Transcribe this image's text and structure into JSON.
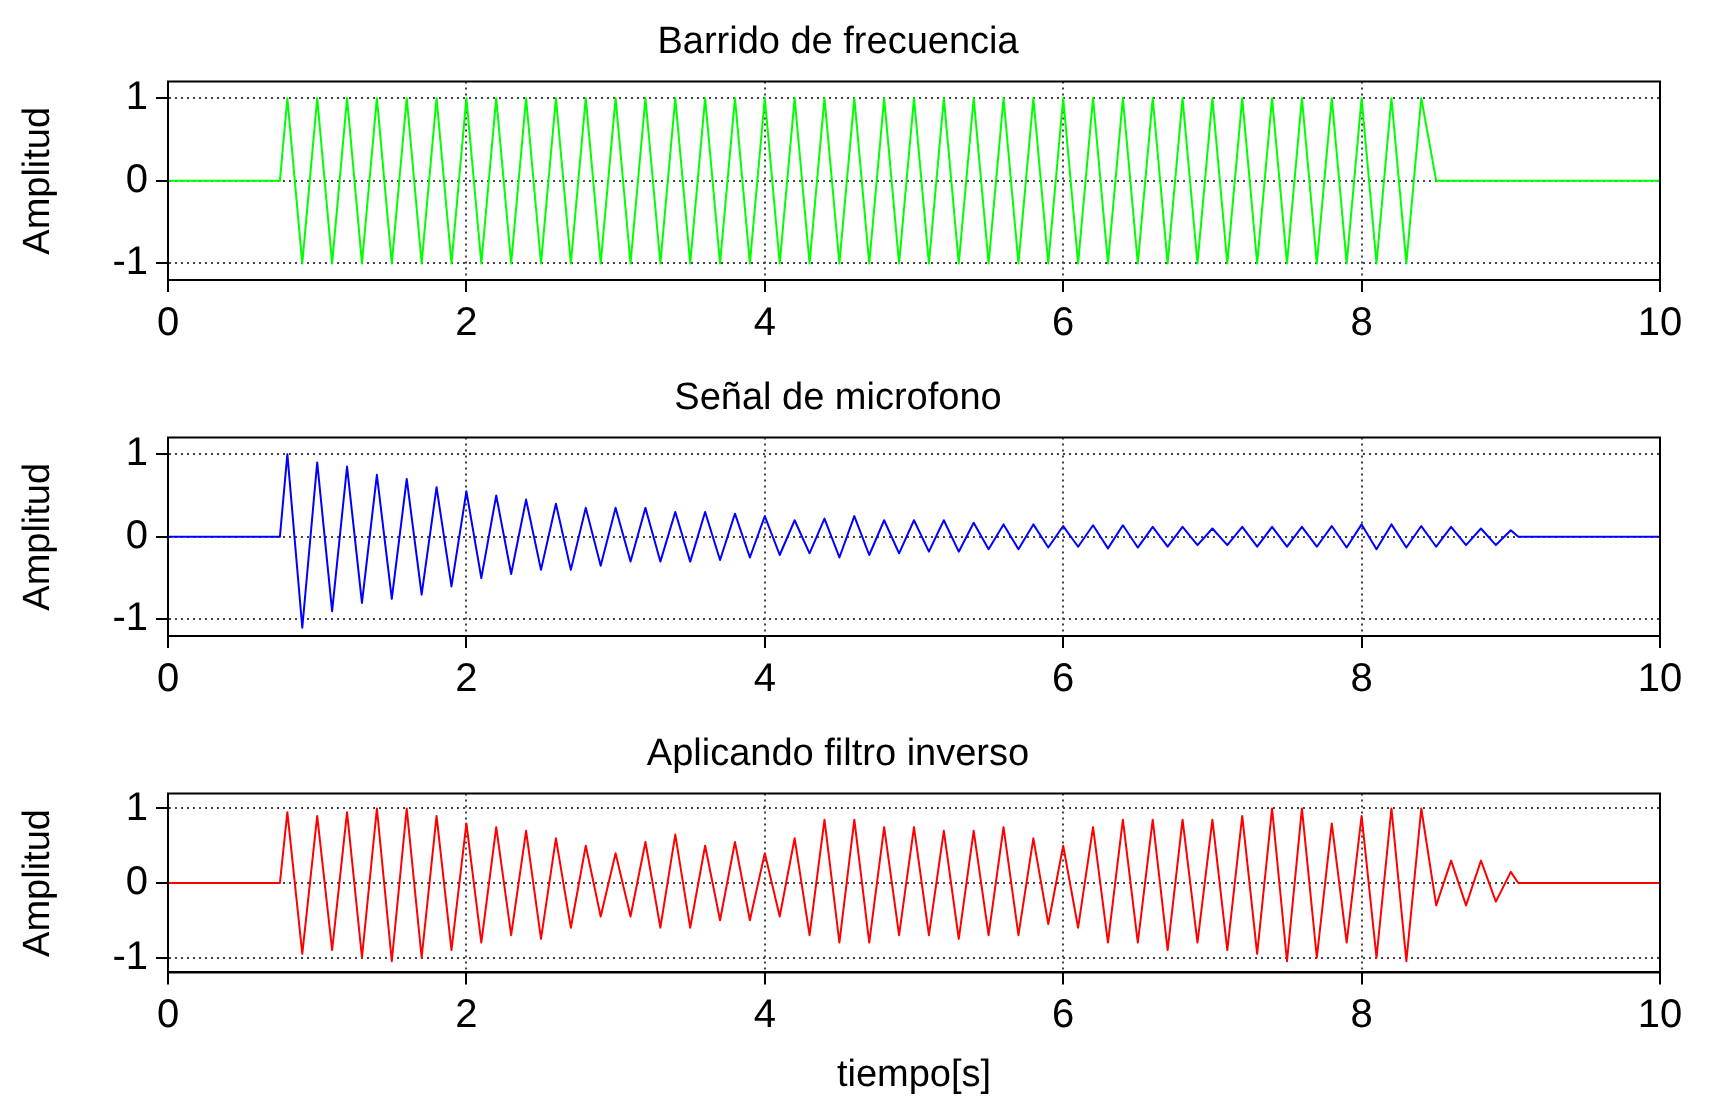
{
  "chart_data": [
    {
      "type": "line",
      "title": "Barrido de frecuencia",
      "ylabel": "Amplitud",
      "color": "#00ff00",
      "xlim": [
        0,
        10
      ],
      "ylim": [
        -1.2,
        1.2
      ],
      "xticks": [
        0,
        2,
        4,
        6,
        8,
        10
      ],
      "yticks": [
        -1,
        0,
        1
      ],
      "grid": true,
      "x": [
        0,
        0.75,
        0.8,
        0.9,
        1,
        1.1,
        1.2,
        1.3,
        1.4,
        1.5,
        1.6,
        1.7,
        1.8,
        1.9,
        2,
        2.1,
        2.2,
        2.3,
        2.4,
        2.5,
        2.6,
        2.7,
        2.8,
        2.9,
        3,
        3.1,
        3.2,
        3.3,
        3.4,
        3.5,
        3.6,
        3.7,
        3.8,
        3.9,
        4,
        4.1,
        4.2,
        4.3,
        4.4,
        4.5,
        4.6,
        4.7,
        4.8,
        4.9,
        5,
        5.1,
        5.2,
        5.3,
        5.4,
        5.5,
        5.6,
        5.7,
        5.8,
        5.9,
        6,
        6.1,
        6.2,
        6.3,
        6.4,
        6.5,
        6.6,
        6.7,
        6.8,
        6.9,
        7,
        7.1,
        7.2,
        7.3,
        7.4,
        7.5,
        7.6,
        7.7,
        7.8,
        7.9,
        8,
        8.1,
        8.2,
        8.3,
        8.4,
        8.5,
        10
      ],
      "values": [
        0,
        0,
        1,
        -1,
        1,
        -1,
        1,
        -1,
        1,
        -1,
        1,
        -1,
        1,
        -1,
        1,
        -1,
        1,
        -1,
        1,
        -1,
        1,
        -1,
        1,
        -1,
        1,
        -1,
        1,
        -1,
        1,
        -1,
        1,
        -1,
        1,
        -1,
        1,
        -1,
        1,
        -1,
        1,
        -1,
        1,
        -1,
        1,
        -1,
        1,
        -1,
        1,
        -1,
        1,
        -1,
        1,
        -1,
        1,
        -1,
        1,
        -1,
        1,
        -1,
        1,
        -1,
        1,
        -1,
        1,
        -1,
        1,
        -1,
        1,
        -1,
        1,
        -1,
        1,
        -1,
        1,
        -1,
        1,
        -1,
        1,
        -1,
        1,
        0,
        0
      ]
    },
    {
      "type": "line",
      "title": "Señal de microfono",
      "ylabel": "Amplitud",
      "color": "#0000ff",
      "xlim": [
        0,
        10
      ],
      "ylim": [
        -1.2,
        1.2
      ],
      "xticks": [
        0,
        2,
        4,
        6,
        8,
        10
      ],
      "yticks": [
        -1,
        0,
        1
      ],
      "grid": true,
      "x": [
        0,
        0.75,
        0.8,
        0.9,
        1,
        1.1,
        1.2,
        1.3,
        1.4,
        1.5,
        1.6,
        1.7,
        1.8,
        1.9,
        2,
        2.1,
        2.2,
        2.3,
        2.4,
        2.5,
        2.6,
        2.7,
        2.8,
        2.9,
        3,
        3.1,
        3.2,
        3.3,
        3.4,
        3.5,
        3.6,
        3.7,
        3.8,
        3.9,
        4,
        4.1,
        4.2,
        4.3,
        4.4,
        4.5,
        4.6,
        4.7,
        4.8,
        4.9,
        5,
        5.1,
        5.2,
        5.3,
        5.4,
        5.5,
        5.6,
        5.7,
        5.8,
        5.9,
        6,
        6.1,
        6.2,
        6.3,
        6.4,
        6.5,
        6.6,
        6.7,
        6.8,
        6.9,
        7,
        7.1,
        7.2,
        7.3,
        7.4,
        7.5,
        7.6,
        7.7,
        7.8,
        7.9,
        8,
        8.1,
        8.2,
        8.3,
        8.4,
        8.5,
        8.6,
        8.7,
        8.8,
        8.9,
        9,
        9.05,
        10
      ],
      "values": [
        0,
        0,
        1.0,
        -1.1,
        0.9,
        -0.9,
        0.85,
        -0.8,
        0.75,
        -0.75,
        0.7,
        -0.7,
        0.6,
        -0.6,
        0.55,
        -0.5,
        0.5,
        -0.45,
        0.45,
        -0.4,
        0.4,
        -0.4,
        0.35,
        -0.35,
        0.35,
        -0.3,
        0.35,
        -0.3,
        0.3,
        -0.3,
        0.3,
        -0.28,
        0.28,
        -0.25,
        0.25,
        -0.22,
        0.2,
        -0.2,
        0.22,
        -0.25,
        0.25,
        -0.22,
        0.2,
        -0.2,
        0.2,
        -0.18,
        0.2,
        -0.18,
        0.17,
        -0.15,
        0.15,
        -0.15,
        0.15,
        -0.13,
        0.13,
        -0.12,
        0.14,
        -0.14,
        0.14,
        -0.13,
        0.12,
        -0.12,
        0.12,
        -0.1,
        0.1,
        -0.1,
        0.12,
        -0.12,
        0.12,
        -0.12,
        0.12,
        -0.12,
        0.13,
        -0.13,
        0.15,
        -0.15,
        0.15,
        -0.13,
        0.13,
        -0.12,
        0.12,
        -0.1,
        0.1,
        -0.1,
        0.08,
        0,
        0
      ]
    },
    {
      "type": "line",
      "title": "Aplicando filtro inverso",
      "xlabel": "tiempo[s]",
      "ylabel": "Amplitud",
      "color": "#ff0000",
      "xlim": [
        0,
        10
      ],
      "ylim": [
        -1.2,
        1.2
      ],
      "xticks": [
        0,
        2,
        4,
        6,
        8,
        10
      ],
      "yticks": [
        -1,
        0,
        1
      ],
      "grid": true,
      "x": [
        0,
        0.75,
        0.8,
        0.9,
        1,
        1.1,
        1.2,
        1.3,
        1.4,
        1.5,
        1.6,
        1.7,
        1.8,
        1.9,
        2,
        2.1,
        2.2,
        2.3,
        2.4,
        2.5,
        2.6,
        2.7,
        2.8,
        2.9,
        3,
        3.1,
        3.2,
        3.3,
        3.4,
        3.5,
        3.6,
        3.7,
        3.8,
        3.9,
        4,
        4.1,
        4.2,
        4.3,
        4.4,
        4.5,
        4.6,
        4.7,
        4.8,
        4.9,
        5,
        5.1,
        5.2,
        5.3,
        5.4,
        5.5,
        5.6,
        5.7,
        5.8,
        5.9,
        6,
        6.1,
        6.2,
        6.3,
        6.4,
        6.5,
        6.6,
        6.7,
        6.8,
        6.9,
        7,
        7.1,
        7.2,
        7.3,
        7.4,
        7.5,
        7.6,
        7.7,
        7.8,
        7.9,
        8,
        8.1,
        8.2,
        8.3,
        8.4,
        8.5,
        8.6,
        8.7,
        8.8,
        8.9,
        9,
        9.05,
        10
      ],
      "values": [
        0,
        0,
        0.95,
        -0.95,
        0.9,
        -0.9,
        0.95,
        -1.0,
        1.0,
        -1.05,
        1.0,
        -1.0,
        0.9,
        -0.9,
        0.8,
        -0.8,
        0.75,
        -0.7,
        0.7,
        -0.75,
        0.6,
        -0.6,
        0.5,
        -0.45,
        0.4,
        -0.45,
        0.55,
        -0.6,
        0.65,
        -0.6,
        0.5,
        -0.5,
        0.55,
        -0.5,
        0.4,
        -0.45,
        0.6,
        -0.7,
        0.85,
        -0.8,
        0.85,
        -0.8,
        0.75,
        -0.7,
        0.75,
        -0.7,
        0.7,
        -0.75,
        0.7,
        -0.7,
        0.75,
        -0.7,
        0.6,
        -0.55,
        0.5,
        -0.6,
        0.75,
        -0.8,
        0.85,
        -0.8,
        0.85,
        -0.9,
        0.85,
        -0.8,
        0.85,
        -0.9,
        0.9,
        -0.95,
        1.0,
        -1.05,
        1.0,
        -1.0,
        0.8,
        -0.8,
        0.9,
        -1.0,
        1.0,
        -1.05,
        1.0,
        -0.3,
        0.3,
        -0.3,
        0.3,
        -0.25,
        0.15,
        0,
        0
      ]
    }
  ]
}
